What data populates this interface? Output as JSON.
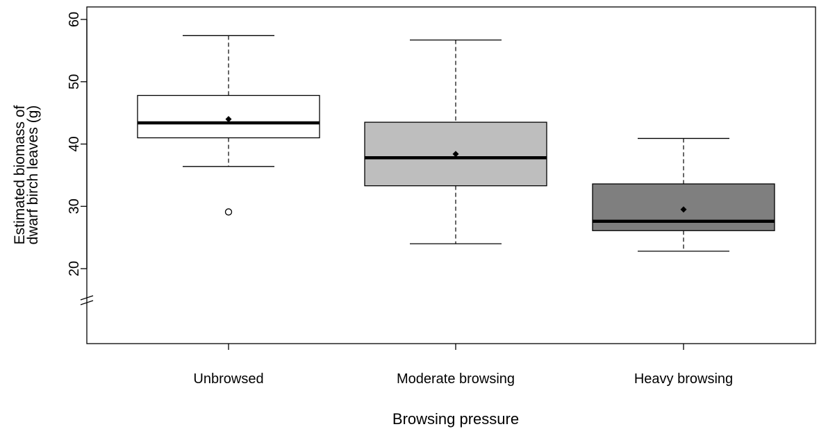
{
  "chart_data": {
    "type": "box",
    "xlabel": "Browsing pressure",
    "ylabel_lines": [
      "Estimated biomass of",
      "dwarf birch leaves (g)"
    ],
    "yticks": [
      20,
      30,
      40,
      50,
      60
    ],
    "ylim": [
      8,
      62
    ],
    "axis_break": true,
    "grid": false,
    "groups": [
      {
        "label": "Unbrowsed",
        "whisker_low": 36.4,
        "q1": 41.0,
        "median": 43.4,
        "q3": 47.8,
        "whisker_high": 57.4,
        "mean": 44.0,
        "outliers": [
          29.1
        ],
        "fill": "#ffffff"
      },
      {
        "label": "Moderate browsing",
        "whisker_low": 24.0,
        "q1": 33.3,
        "median": 37.8,
        "q3": 43.5,
        "whisker_high": 56.7,
        "mean": 38.4,
        "outliers": [],
        "fill": "#bebebe"
      },
      {
        "label": "Heavy browsing",
        "whisker_low": 22.8,
        "q1": 26.1,
        "median": 27.6,
        "q3": 33.6,
        "whisker_high": 40.9,
        "mean": 29.5,
        "outliers": [],
        "fill": "#7f7f7f"
      }
    ]
  }
}
